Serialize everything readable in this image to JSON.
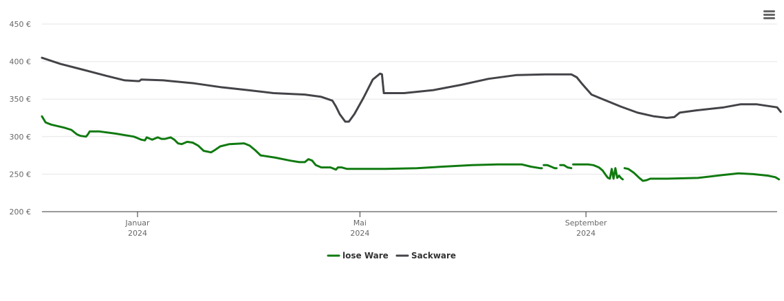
{
  "menu": {
    "icon": "hamburger-menu-icon"
  },
  "chart_data": {
    "type": "line",
    "title": "",
    "xlabel": "",
    "ylabel": "",
    "x_range": [
      "2023-11-10",
      "2024-12-14"
    ],
    "ylim": [
      200,
      450
    ],
    "y_ticks": [
      {
        "value": 200,
        "label": "200 €"
      },
      {
        "value": 250,
        "label": "250 €"
      },
      {
        "value": 300,
        "label": "300 €"
      },
      {
        "value": 350,
        "label": "350 €"
      },
      {
        "value": 400,
        "label": "400 €"
      },
      {
        "value": 450,
        "label": "450 €"
      }
    ],
    "x_ticks": [
      {
        "date": "2024-01-01",
        "month": "Januar",
        "year": "2024"
      },
      {
        "date": "2024-05-01",
        "month": "Mai",
        "year": "2024"
      },
      {
        "date": "2024-09-01",
        "month": "September",
        "year": "2024"
      }
    ],
    "grid": true,
    "legend_position": "bottom-center",
    "series": [
      {
        "name": "lose Ware",
        "color": "#107a10",
        "segments": [
          [
            [
              "2023-11-10",
              327
            ],
            [
              "2023-11-12",
              319
            ],
            [
              "2023-11-15",
              316
            ],
            [
              "2023-11-22",
              312
            ],
            [
              "2023-11-26",
              309
            ],
            [
              "2023-11-29",
              303
            ],
            [
              "2023-12-01",
              301
            ],
            [
              "2023-12-04",
              300
            ],
            [
              "2023-12-05",
              303
            ],
            [
              "2023-12-06",
              307
            ],
            [
              "2023-12-11",
              307
            ],
            [
              "2023-12-20",
              304
            ],
            [
              "2023-12-30",
              300
            ],
            [
              "2024-01-01",
              298
            ],
            [
              "2024-01-03",
              296
            ],
            [
              "2024-01-05",
              295
            ],
            [
              "2024-01-06",
              299
            ],
            [
              "2024-01-08",
              297
            ],
            [
              "2024-01-09",
              296
            ],
            [
              "2024-01-12",
              299
            ],
            [
              "2024-01-14",
              297
            ],
            [
              "2024-01-16",
              297
            ],
            [
              "2024-01-19",
              299
            ],
            [
              "2024-01-21",
              296
            ],
            [
              "2024-01-23",
              291
            ],
            [
              "2024-01-25",
              290
            ],
            [
              "2024-01-28",
              293
            ],
            [
              "2024-01-31",
              292
            ],
            [
              "2024-02-03",
              288
            ],
            [
              "2024-02-06",
              281
            ],
            [
              "2024-02-10",
              279
            ],
            [
              "2024-02-12",
              282
            ],
            [
              "2024-02-15",
              287
            ],
            [
              "2024-02-20",
              290
            ],
            [
              "2024-02-28",
              291
            ],
            [
              "2024-03-02",
              288
            ],
            [
              "2024-03-05",
              282
            ],
            [
              "2024-03-08",
              275
            ],
            [
              "2024-03-16",
              272
            ],
            [
              "2024-03-24",
              268
            ],
            [
              "2024-03-29",
              266
            ],
            [
              "2024-04-01",
              266
            ],
            [
              "2024-04-03",
              270
            ],
            [
              "2024-04-05",
              268
            ],
            [
              "2024-04-07",
              262
            ],
            [
              "2024-04-10",
              259
            ],
            [
              "2024-04-15",
              259
            ],
            [
              "2024-04-18",
              256
            ],
            [
              "2024-04-19",
              259
            ],
            [
              "2024-04-21",
              259
            ],
            [
              "2024-04-24",
              257
            ],
            [
              "2024-05-01",
              257
            ],
            [
              "2024-05-15",
              257
            ],
            [
              "2024-06-01",
              258
            ],
            [
              "2024-06-15",
              260
            ],
            [
              "2024-07-01",
              262
            ],
            [
              "2024-07-15",
              263
            ],
            [
              "2024-07-28",
              263
            ],
            [
              "2024-08-02",
              260
            ],
            [
              "2024-08-07",
              258
            ],
            [
              "2024-08-08",
              258
            ]
          ],
          [
            [
              "2024-08-09",
              262
            ],
            [
              "2024-08-11",
              262
            ],
            [
              "2024-08-13",
              260
            ],
            [
              "2024-08-15",
              258
            ],
            [
              "2024-08-16",
              258
            ]
          ],
          [
            [
              "2024-08-18",
              262
            ],
            [
              "2024-08-20",
              262
            ],
            [
              "2024-08-22",
              259
            ],
            [
              "2024-08-24",
              258
            ]
          ],
          [
            [
              "2024-08-25",
              263
            ],
            [
              "2024-09-02",
              263
            ],
            [
              "2024-09-05",
              262
            ],
            [
              "2024-09-08",
              259
            ],
            [
              "2024-09-10",
              255
            ],
            [
              "2024-09-12",
              248
            ],
            [
              "2024-09-13",
              245
            ],
            [
              "2024-09-14",
              244
            ],
            [
              "2024-09-15",
              257
            ],
            [
              "2024-09-16",
              244
            ],
            [
              "2024-09-17",
              258
            ],
            [
              "2024-09-18",
              245
            ],
            [
              "2024-09-19",
              248
            ],
            [
              "2024-09-20",
              245
            ],
            [
              "2024-09-21",
              243
            ]
          ],
          [
            [
              "2024-09-22",
              258
            ],
            [
              "2024-09-24",
              257
            ],
            [
              "2024-09-27",
              252
            ],
            [
              "2024-09-30",
              245
            ],
            [
              "2024-10-02",
              241
            ],
            [
              "2024-10-04",
              242
            ],
            [
              "2024-10-06",
              244
            ],
            [
              "2024-10-15",
              244
            ],
            [
              "2024-11-01",
              245
            ],
            [
              "2024-11-15",
              249
            ],
            [
              "2024-11-23",
              251
            ],
            [
              "2024-12-01",
              250
            ],
            [
              "2024-12-09",
              248
            ],
            [
              "2024-12-13",
              246
            ],
            [
              "2024-12-15",
              243
            ]
          ]
        ]
      },
      {
        "name": "Sackware",
        "color": "#434348",
        "segments": [
          [
            [
              "2023-11-10",
              405
            ],
            [
              "2023-11-20",
              397
            ],
            [
              "2023-12-01",
              390
            ],
            [
              "2023-12-15",
              381
            ],
            [
              "2023-12-25",
              375
            ],
            [
              "2024-01-01",
              374
            ],
            [
              "2024-01-02",
              374
            ],
            [
              "2024-01-03",
              376
            ],
            [
              "2024-01-15",
              375
            ],
            [
              "2024-02-01",
              371
            ],
            [
              "2024-02-15",
              366
            ],
            [
              "2024-03-01",
              362
            ],
            [
              "2024-03-15",
              358
            ],
            [
              "2024-04-01",
              356
            ],
            [
              "2024-04-10",
              353
            ],
            [
              "2024-04-16",
              348
            ],
            [
              "2024-04-18",
              340
            ],
            [
              "2024-04-20",
              330
            ],
            [
              "2024-04-23",
              320
            ],
            [
              "2024-04-25",
              320
            ],
            [
              "2024-04-28",
              330
            ],
            [
              "2024-05-03",
              352
            ],
            [
              "2024-05-08",
              376
            ],
            [
              "2024-05-12",
              384
            ],
            [
              "2024-05-13",
              383
            ],
            [
              "2024-05-14",
              358
            ],
            [
              "2024-05-25",
              358
            ],
            [
              "2024-06-10",
              362
            ],
            [
              "2024-06-25",
              369
            ],
            [
              "2024-07-10",
              377
            ],
            [
              "2024-07-25",
              382
            ],
            [
              "2024-08-10",
              383
            ],
            [
              "2024-08-24",
              383
            ],
            [
              "2024-08-27",
              379
            ],
            [
              "2024-08-30",
              370
            ],
            [
              "2024-09-04",
              356
            ],
            [
              "2024-09-10",
              350
            ],
            [
              "2024-09-20",
              340
            ],
            [
              "2024-09-29",
              332
            ],
            [
              "2024-10-08",
              327
            ],
            [
              "2024-10-15",
              325
            ],
            [
              "2024-10-19",
              326
            ],
            [
              "2024-10-22",
              332
            ],
            [
              "2024-10-31",
              335
            ],
            [
              "2024-11-15",
              339
            ],
            [
              "2024-11-24",
              343
            ],
            [
              "2024-12-03",
              343
            ],
            [
              "2024-12-14",
              339
            ],
            [
              "2024-12-16",
              333
            ]
          ]
        ]
      }
    ]
  }
}
